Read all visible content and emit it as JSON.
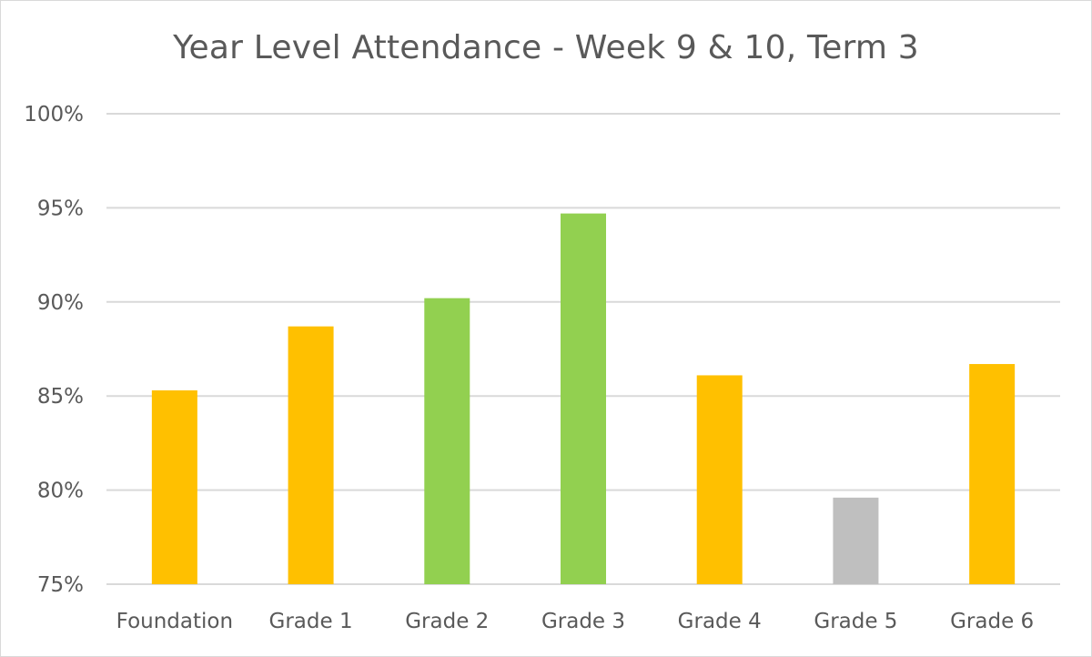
{
  "chart_data": {
    "type": "bar",
    "title": "Year Level Attendance - Week 9 & 10, Term 3",
    "xlabel": "",
    "ylabel": "",
    "categories": [
      "Foundation",
      "Grade 1",
      "Grade 2",
      "Grade 3",
      "Grade 4",
      "Grade 5",
      "Grade 6"
    ],
    "values": [
      85.3,
      88.7,
      90.2,
      94.7,
      86.1,
      79.6,
      86.7
    ],
    "ylim": [
      75,
      100
    ],
    "yticks": [
      75,
      80,
      85,
      90,
      95,
      100
    ],
    "ytick_labels": [
      "75%",
      "80%",
      "85%",
      "90%",
      "95%",
      "100%"
    ],
    "bar_colors": [
      "#FFC000",
      "#FFC000",
      "#92D050",
      "#92D050",
      "#FFC000",
      "#BFBFBF",
      "#FFC000"
    ],
    "gridlines": true,
    "legend": "none"
  },
  "colors": {
    "grid": "#d9d9d9",
    "text": "#595959"
  }
}
